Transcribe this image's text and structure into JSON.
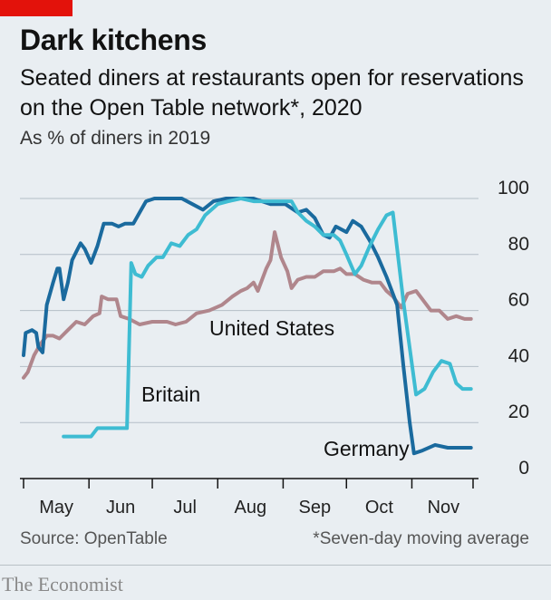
{
  "accent_color": "#e3120b",
  "title": "Dark kitchens",
  "subtitle": "Seated diners at restaurants open for reservations on the Open Table network*, 2020",
  "unit_note": "As % of diners in 2019",
  "source": "Source: OpenTable",
  "footnote": "*Seven-day moving average",
  "brand": "The Economist",
  "chart_data": {
    "type": "line",
    "x_range": [
      "2020-05-01",
      "2020-11-30"
    ],
    "x_tick_labels": [
      "May",
      "Jun",
      "Jul",
      "Aug",
      "Sep",
      "Oct",
      "Nov"
    ],
    "y_ticks": [
      0,
      20,
      40,
      60,
      80,
      100
    ],
    "ylim": [
      0,
      100
    ],
    "y_axis_side": "right",
    "grid": true,
    "series": [
      {
        "name": "Germany",
        "color": "#1a6a9e",
        "points": [
          [
            "2020-05-01",
            44
          ],
          [
            "2020-05-02",
            52
          ],
          [
            "2020-05-05",
            53
          ],
          [
            "2020-05-07",
            52
          ],
          [
            "2020-05-08",
            47
          ],
          [
            "2020-05-10",
            45
          ],
          [
            "2020-05-12",
            62
          ],
          [
            "2020-05-15",
            70
          ],
          [
            "2020-05-17",
            75
          ],
          [
            "2020-05-18",
            75
          ],
          [
            "2020-05-20",
            64
          ],
          [
            "2020-05-22",
            70
          ],
          [
            "2020-05-24",
            78
          ],
          [
            "2020-05-26",
            81
          ],
          [
            "2020-05-28",
            84
          ],
          [
            "2020-05-30",
            82
          ],
          [
            "2020-06-02",
            77
          ],
          [
            "2020-06-05",
            83
          ],
          [
            "2020-06-08",
            91
          ],
          [
            "2020-06-12",
            91
          ],
          [
            "2020-06-15",
            90
          ],
          [
            "2020-06-18",
            91
          ],
          [
            "2020-06-22",
            91
          ],
          [
            "2020-06-25",
            95
          ],
          [
            "2020-06-28",
            99
          ],
          [
            "2020-07-02",
            100
          ],
          [
            "2020-07-10",
            100
          ],
          [
            "2020-07-15",
            100
          ],
          [
            "2020-07-20",
            98
          ],
          [
            "2020-07-25",
            96
          ],
          [
            "2020-07-30",
            99
          ],
          [
            "2020-08-05",
            100
          ],
          [
            "2020-08-12",
            100
          ],
          [
            "2020-08-18",
            100
          ],
          [
            "2020-08-22",
            99
          ],
          [
            "2020-08-26",
            98
          ],
          [
            "2020-09-02",
            98
          ],
          [
            "2020-09-08",
            95
          ],
          [
            "2020-09-12",
            96
          ],
          [
            "2020-09-16",
            93
          ],
          [
            "2020-09-20",
            87
          ],
          [
            "2020-09-23",
            86
          ],
          [
            "2020-09-26",
            90
          ],
          [
            "2020-10-01",
            88
          ],
          [
            "2020-10-04",
            92
          ],
          [
            "2020-10-08",
            90
          ],
          [
            "2020-10-12",
            85
          ],
          [
            "2020-10-16",
            79
          ],
          [
            "2020-10-20",
            72
          ],
          [
            "2020-10-25",
            62
          ],
          [
            "2020-10-28",
            40
          ],
          [
            "2020-10-31",
            20
          ],
          [
            "2020-11-02",
            9
          ],
          [
            "2020-11-06",
            10
          ],
          [
            "2020-11-12",
            12
          ],
          [
            "2020-11-18",
            11
          ],
          [
            "2020-11-24",
            11
          ],
          [
            "2020-11-29",
            11
          ]
        ]
      },
      {
        "name": "Britain",
        "color": "#3ebcd2",
        "points": [
          [
            "2020-05-20",
            15
          ],
          [
            "2020-05-29",
            15
          ],
          [
            "2020-06-02",
            15
          ],
          [
            "2020-06-05",
            18
          ],
          [
            "2020-06-10",
            18
          ],
          [
            "2020-06-15",
            18
          ],
          [
            "2020-06-19",
            18
          ],
          [
            "2020-06-21",
            77
          ],
          [
            "2020-06-23",
            73
          ],
          [
            "2020-06-26",
            72
          ],
          [
            "2020-06-29",
            76
          ],
          [
            "2020-07-03",
            79
          ],
          [
            "2020-07-06",
            79
          ],
          [
            "2020-07-10",
            84
          ],
          [
            "2020-07-14",
            83
          ],
          [
            "2020-07-18",
            87
          ],
          [
            "2020-07-22",
            89
          ],
          [
            "2020-07-26",
            94
          ],
          [
            "2020-08-01",
            98
          ],
          [
            "2020-08-06",
            99
          ],
          [
            "2020-08-12",
            100
          ],
          [
            "2020-08-18",
            99
          ],
          [
            "2020-08-25",
            99
          ],
          [
            "2020-09-01",
            99
          ],
          [
            "2020-09-05",
            99
          ],
          [
            "2020-09-08",
            95
          ],
          [
            "2020-09-12",
            92
          ],
          [
            "2020-09-16",
            90
          ],
          [
            "2020-09-20",
            87
          ],
          [
            "2020-09-25",
            87
          ],
          [
            "2020-09-28",
            85
          ],
          [
            "2020-10-01",
            80
          ],
          [
            "2020-10-05",
            73
          ],
          [
            "2020-10-08",
            76
          ],
          [
            "2020-10-12",
            83
          ],
          [
            "2020-10-16",
            89
          ],
          [
            "2020-10-20",
            94
          ],
          [
            "2020-10-23",
            95
          ],
          [
            "2020-10-28",
            63
          ],
          [
            "2020-11-03",
            30
          ],
          [
            "2020-11-07",
            32
          ],
          [
            "2020-11-11",
            38
          ],
          [
            "2020-11-15",
            42
          ],
          [
            "2020-11-19",
            41
          ],
          [
            "2020-11-22",
            34
          ],
          [
            "2020-11-25",
            32
          ],
          [
            "2020-11-29",
            32
          ]
        ]
      },
      {
        "name": "United States",
        "color": "#b0868c",
        "points": [
          [
            "2020-05-01",
            36
          ],
          [
            "2020-05-03",
            38
          ],
          [
            "2020-05-06",
            44
          ],
          [
            "2020-05-09",
            48
          ],
          [
            "2020-05-12",
            51
          ],
          [
            "2020-05-15",
            51
          ],
          [
            "2020-05-18",
            50
          ],
          [
            "2020-05-22",
            53
          ],
          [
            "2020-05-26",
            56
          ],
          [
            "2020-05-30",
            55
          ],
          [
            "2020-06-03",
            58
          ],
          [
            "2020-06-06",
            59
          ],
          [
            "2020-06-07",
            65
          ],
          [
            "2020-06-10",
            64
          ],
          [
            "2020-06-14",
            64
          ],
          [
            "2020-06-16",
            58
          ],
          [
            "2020-06-20",
            57
          ],
          [
            "2020-06-25",
            55
          ],
          [
            "2020-07-01",
            56
          ],
          [
            "2020-07-08",
            56
          ],
          [
            "2020-07-12",
            55
          ],
          [
            "2020-07-17",
            56
          ],
          [
            "2020-07-22",
            59
          ],
          [
            "2020-07-28",
            60
          ],
          [
            "2020-08-03",
            62
          ],
          [
            "2020-08-08",
            65
          ],
          [
            "2020-08-12",
            67
          ],
          [
            "2020-08-15",
            68
          ],
          [
            "2020-08-18",
            70
          ],
          [
            "2020-08-20",
            67
          ],
          [
            "2020-08-24",
            75
          ],
          [
            "2020-08-26",
            78
          ],
          [
            "2020-08-28",
            88
          ],
          [
            "2020-08-31",
            79
          ],
          [
            "2020-09-03",
            74
          ],
          [
            "2020-09-05",
            68
          ],
          [
            "2020-09-08",
            71
          ],
          [
            "2020-09-12",
            72
          ],
          [
            "2020-09-16",
            72
          ],
          [
            "2020-09-20",
            74
          ],
          [
            "2020-09-25",
            74
          ],
          [
            "2020-09-28",
            75
          ],
          [
            "2020-10-01",
            73
          ],
          [
            "2020-10-05",
            73
          ],
          [
            "2020-10-09",
            71
          ],
          [
            "2020-10-13",
            70
          ],
          [
            "2020-10-17",
            70
          ],
          [
            "2020-10-20",
            67
          ],
          [
            "2020-10-23",
            65
          ],
          [
            "2020-10-27",
            61
          ],
          [
            "2020-10-30",
            66
          ],
          [
            "2020-11-03",
            67
          ],
          [
            "2020-11-06",
            64
          ],
          [
            "2020-11-10",
            60
          ],
          [
            "2020-11-14",
            60
          ],
          [
            "2020-11-18",
            57
          ],
          [
            "2020-11-22",
            58
          ],
          [
            "2020-11-26",
            57
          ],
          [
            "2020-11-29",
            57
          ]
        ]
      }
    ],
    "annotations": [
      "United States",
      "Britain",
      "Germany"
    ]
  }
}
